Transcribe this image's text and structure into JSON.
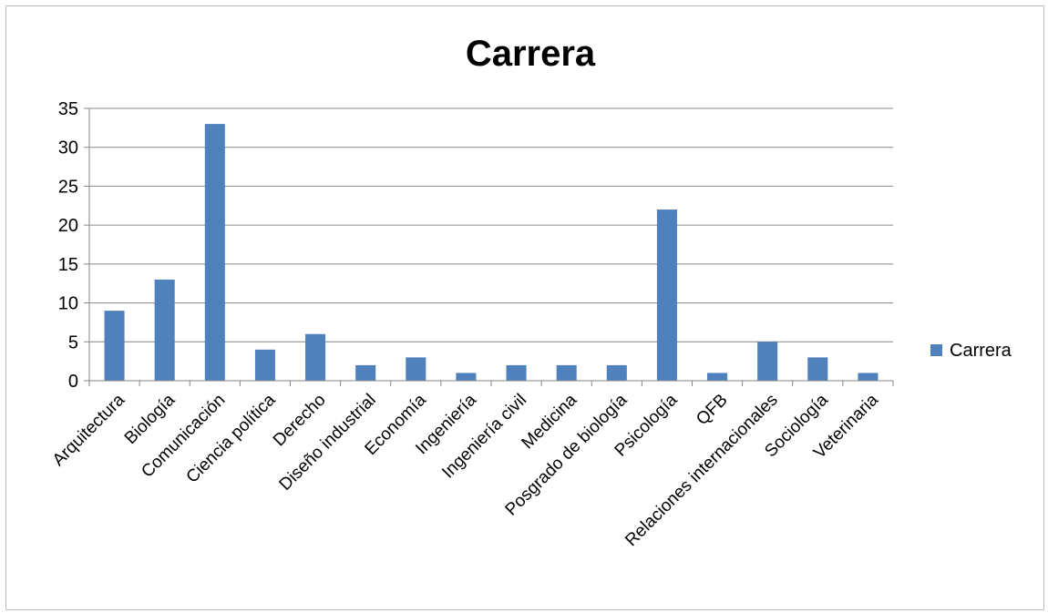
{
  "chart_data": {
    "type": "bar",
    "title": "Carrera",
    "categories": [
      "Arquitectura",
      "Biología",
      "Comunicación",
      "Ciencia política",
      "Derecho",
      "Diseño industrial",
      "Economía",
      "Ingeniería",
      "Ingeniería civil",
      "Medicina",
      "Posgrado de biología",
      "Psicología",
      "QFB",
      "Relaciones internacionales",
      "Sociología",
      "Veterinaria"
    ],
    "series": [
      {
        "name": "Carrera",
        "values": [
          9,
          13,
          33,
          4,
          6,
          2,
          3,
          1,
          2,
          2,
          2,
          22,
          1,
          5,
          3,
          1
        ]
      }
    ],
    "xlabel": "",
    "ylabel": "",
    "ylim": [
      0,
      35
    ],
    "yticks": [
      0,
      5,
      10,
      15,
      20,
      25,
      30,
      35
    ],
    "grid": true,
    "legend": "right",
    "bar_color": "#4f81bd",
    "grid_color": "#868686"
  }
}
